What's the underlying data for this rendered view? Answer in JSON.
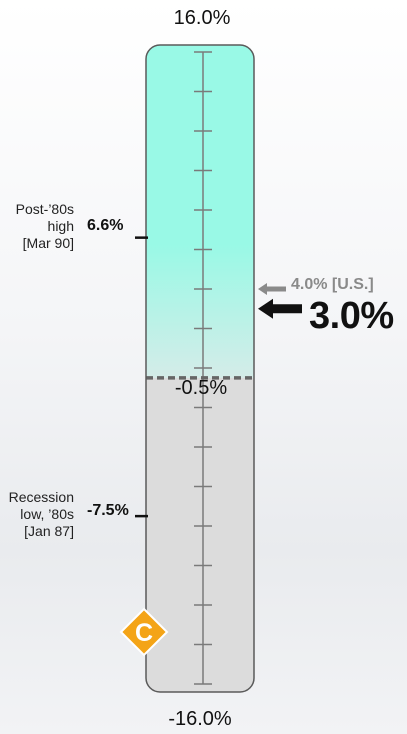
{
  "chart_data": {
    "type": "gauge",
    "scale_max": 16.0,
    "scale_min": -16.0,
    "labels": {
      "max": "16.0%",
      "min": "-16.0%",
      "threshold": "-0.5%",
      "current": "3.0%",
      "us": "4.0% [U.S.]"
    },
    "threshold": -0.5,
    "current_value": 3.0,
    "us_value": 4.0,
    "tick_step": 2.0,
    "annotations": [
      {
        "id": "high",
        "value": 6.6,
        "value_label": "6.6%",
        "note_lines": [
          "Post-’80s",
          "high",
          "[Mar 90]"
        ]
      },
      {
        "id": "low",
        "value": -7.5,
        "value_label": "-7.5%",
        "note_lines": [
          "Recession",
          "low, ’80s",
          "[Jan 87]"
        ]
      }
    ],
    "badge": {
      "letter": "C",
      "color": "#f4a417"
    },
    "colors": {
      "upper_fill": "#99f9e6",
      "upper_fill_bottom": "#d4ece8",
      "lower_fill": "#dcdcdc",
      "tube_border": "#5a5a5a",
      "threshold_line": "#666666",
      "us_arrow": "#8a8a8a",
      "current_arrow": "#111111"
    }
  }
}
